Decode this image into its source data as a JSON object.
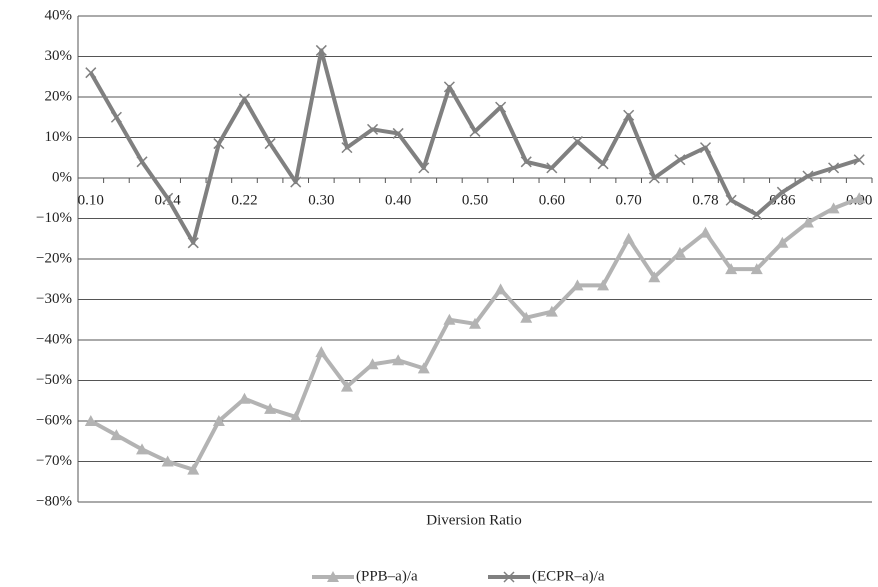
{
  "chart_data": {
    "type": "line",
    "x_label": "Diversion Ratio",
    "categories": [
      "0.10",
      null,
      null,
      "0.14",
      null,
      null,
      "0.22",
      null,
      null,
      "0.30",
      null,
      null,
      "0.40",
      null,
      null,
      "0.50",
      null,
      null,
      "0.60",
      null,
      null,
      "0.70",
      null,
      null,
      "0.78",
      null,
      null,
      "0.86",
      null,
      null,
      "0.90"
    ],
    "series": [
      {
        "name": "(PPB–a)/a",
        "color": "#b3b3b3",
        "marker": "triangle",
        "values": [
          -60,
          -63.5,
          -67,
          -70,
          -72,
          -60,
          -54.5,
          -57,
          -59,
          -43,
          -51.5,
          -46,
          -45,
          -47,
          -35,
          -36,
          -27.5,
          -34.5,
          -33,
          -26.5,
          -26.5,
          -15,
          -24.5,
          -18.5,
          -13.5,
          -22.5,
          -22.5,
          -16,
          -11,
          -7.5,
          -5
        ]
      },
      {
        "name": "(ECPR–a)/a",
        "color": "#808080",
        "marker": "x",
        "values": [
          26,
          15,
          4,
          -5,
          -16,
          8.5,
          19.5,
          8.5,
          -1,
          31.5,
          7.5,
          12,
          11,
          2.5,
          22.5,
          11.5,
          17.5,
          4,
          2.5,
          9,
          3.5,
          15.5,
          0,
          4.5,
          7.5,
          -5.5,
          -9,
          -3.5,
          0.5,
          2.5,
          4.5
        ]
      }
    ],
    "ylim": [
      -80,
      40
    ],
    "yticks": [
      {
        "value": -80,
        "label": "−80%"
      },
      {
        "value": -70,
        "label": "−70%"
      },
      {
        "value": -60,
        "label": "−60%"
      },
      {
        "value": -50,
        "label": "−50%"
      },
      {
        "value": -40,
        "label": "−40%"
      },
      {
        "value": -30,
        "label": "−30%"
      },
      {
        "value": -20,
        "label": "−20%"
      },
      {
        "value": -10,
        "label": "−10%"
      },
      {
        "value": 0,
        "label": "0%"
      },
      {
        "value": 10,
        "label": "10%"
      },
      {
        "value": 20,
        "label": "20%"
      },
      {
        "value": 30,
        "label": "30%"
      },
      {
        "value": 40,
        "label": "40%"
      }
    ],
    "grid": true,
    "legend": "bottom"
  }
}
